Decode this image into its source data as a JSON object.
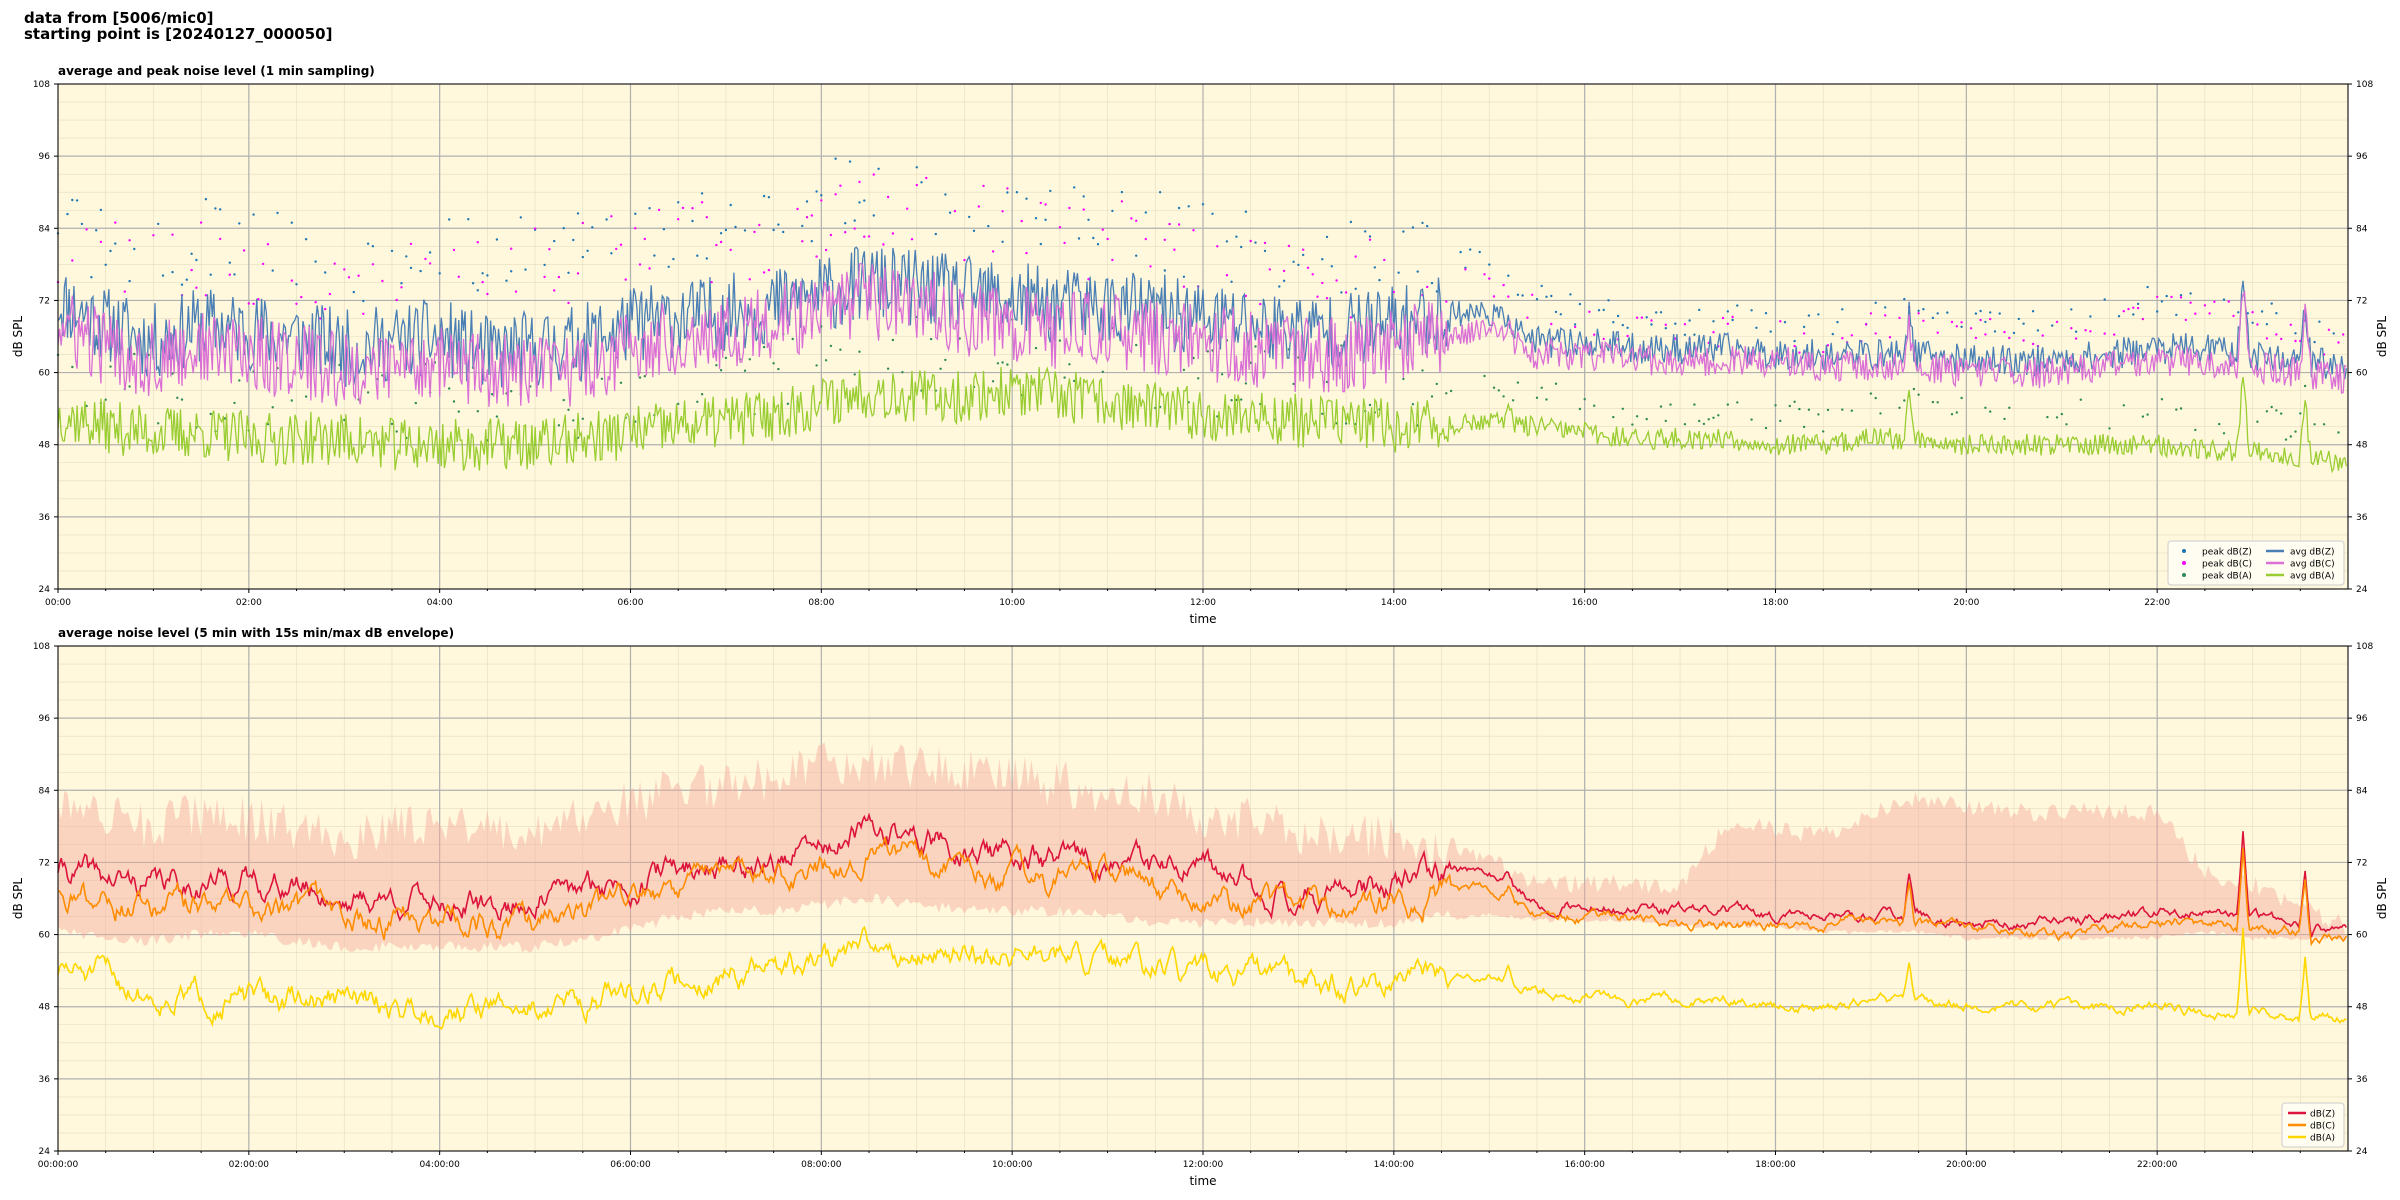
{
  "header": {
    "line1": "data from [5006/mic0]",
    "line2": "starting point is [20240127_000050]"
  },
  "colors": {
    "background": "#fff8dc",
    "peak_z": "#1f77b4",
    "peak_c": "#ff00ff",
    "peak_a": "#2e8b57",
    "avg_z": "#4a7fb5",
    "avg_c": "#da70d6",
    "avg_a": "#9acd32",
    "env": "#f4a89c",
    "z5": "#dc143c",
    "c5": "#ff8c00",
    "a5": "#ffd700"
  },
  "chart_data": [
    {
      "type": "line",
      "title": "average and peak noise level (1 min sampling)",
      "xlabel": "time",
      "ylabel": "dB SPL",
      "ylim": [
        24,
        108
      ],
      "xlim_hours": [
        0,
        24
      ],
      "x_ticks": [
        "00:00",
        "02:00",
        "04:00",
        "06:00",
        "08:00",
        "10:00",
        "12:00",
        "14:00",
        "16:00",
        "18:00",
        "20:00",
        "22:00"
      ],
      "y_ticks": [
        24,
        36,
        48,
        60,
        72,
        84,
        96,
        108
      ],
      "grid": true,
      "legend_position": "bottom-right",
      "x_hours": [
        0,
        0.5,
        1,
        1.5,
        2,
        2.5,
        3,
        3.5,
        4,
        4.5,
        5,
        5.5,
        6,
        6.5,
        7,
        7.5,
        8,
        8.5,
        9,
        9.5,
        10,
        10.5,
        11,
        11.5,
        12,
        12.5,
        13,
        13.5,
        14,
        14.5,
        15,
        15.5,
        16,
        16.5,
        17,
        17.5,
        18,
        18.5,
        19,
        19.5,
        20,
        20.5,
        21,
        21.5,
        22,
        22.5,
        23,
        23.5,
        24
      ],
      "series": [
        {
          "name": "avg dB(Z)",
          "style": "line",
          "values": [
            72,
            68,
            65,
            68,
            67,
            66,
            64,
            65,
            66,
            63,
            64,
            65,
            68,
            69,
            70,
            71,
            73,
            75,
            74,
            73,
            72,
            71,
            71,
            70,
            69,
            68,
            67,
            67,
            68,
            70,
            70,
            65,
            65,
            64,
            64,
            64,
            63,
            63,
            63,
            63,
            62,
            62,
            62,
            63,
            64,
            64,
            63,
            62,
            61
          ]
        },
        {
          "name": "avg dB(C)",
          "style": "line",
          "values": [
            68,
            64,
            62,
            64,
            63,
            62,
            60,
            61,
            62,
            60,
            60,
            61,
            64,
            66,
            67,
            68,
            70,
            72,
            71,
            69,
            68,
            67,
            67,
            66,
            65,
            64,
            63,
            63,
            65,
            66,
            67,
            63,
            63,
            62,
            62,
            62,
            62,
            61,
            61,
            61,
            60,
            60,
            60,
            61,
            62,
            62,
            61,
            60,
            59
          ]
        },
        {
          "name": "avg dB(A)",
          "style": "line",
          "values": [
            53,
            51,
            50,
            50,
            49,
            49,
            49,
            48,
            48,
            48,
            48,
            49,
            50,
            51,
            52,
            53,
            55,
            57,
            56,
            56,
            57,
            56,
            55,
            54,
            53,
            53,
            52,
            52,
            51,
            51,
            52,
            51,
            50,
            49,
            49,
            49,
            48,
            48,
            49,
            49,
            48,
            48,
            48,
            48,
            48,
            47,
            47,
            46,
            45
          ]
        },
        {
          "name": "peak dB(Z)",
          "style": "scatter",
          "values": [
            84,
            82,
            80,
            82,
            81,
            80,
            78,
            80,
            80,
            79,
            80,
            81,
            83,
            84,
            85,
            86,
            88,
            90,
            89,
            88,
            87,
            86,
            85,
            84,
            82,
            81,
            80,
            79,
            80,
            79,
            78,
            72,
            70,
            70,
            69,
            69,
            68,
            68,
            70,
            70,
            70,
            69,
            69,
            70,
            72,
            72,
            70,
            68,
            66
          ]
        },
        {
          "name": "peak dB(C)",
          "style": "scatter",
          "values": [
            81,
            79,
            77,
            79,
            78,
            77,
            75,
            77,
            77,
            76,
            77,
            78,
            80,
            81,
            82,
            83,
            85,
            87,
            86,
            85,
            84,
            83,
            82,
            81,
            79,
            78,
            77,
            76,
            77,
            76,
            75,
            70,
            68,
            68,
            67,
            67,
            66,
            66,
            68,
            68,
            68,
            67,
            67,
            68,
            70,
            70,
            68,
            66,
            64
          ]
        },
        {
          "name": "peak dB(A)",
          "style": "scatter",
          "values": [
            60,
            58,
            57,
            57,
            56,
            56,
            55,
            55,
            55,
            55,
            55,
            56,
            57,
            58,
            59,
            60,
            62,
            64,
            63,
            63,
            63,
            62,
            61,
            60,
            59,
            59,
            58,
            58,
            57,
            57,
            57,
            56,
            55,
            54,
            54,
            54,
            53,
            53,
            54,
            54,
            53,
            53,
            53,
            53,
            53,
            52,
            52,
            51,
            50
          ]
        }
      ]
    },
    {
      "type": "line",
      "title": "average noise level (5 min with 15s min/max dB envelope)",
      "xlabel": "time",
      "ylabel": "dB SPL",
      "ylim": [
        24,
        108
      ],
      "xlim_hours": [
        0,
        24
      ],
      "x_ticks": [
        "00:00:00",
        "02:00:00",
        "04:00:00",
        "06:00:00",
        "08:00:00",
        "10:00:00",
        "12:00:00",
        "14:00:00",
        "16:00:00",
        "18:00:00",
        "20:00:00",
        "22:00:00"
      ],
      "y_ticks": [
        24,
        36,
        48,
        60,
        72,
        84,
        96,
        108
      ],
      "grid": true,
      "legend_position": "bottom-right",
      "x_hours": [
        0,
        0.5,
        1,
        1.5,
        2,
        2.5,
        3,
        3.5,
        4,
        4.5,
        5,
        5.5,
        6,
        6.5,
        7,
        7.5,
        8,
        8.5,
        9,
        9.5,
        10,
        10.5,
        11,
        11.5,
        12,
        12.5,
        13,
        13.5,
        14,
        14.5,
        15,
        15.5,
        16,
        16.5,
        17,
        17.5,
        18,
        18.5,
        19,
        19.5,
        20,
        20.5,
        21,
        21.5,
        22,
        22.5,
        23,
        23.5,
        24
      ],
      "envelope": {
        "min": [
          60,
          58,
          58,
          59,
          59,
          58,
          57,
          57,
          57,
          57,
          57,
          58,
          60,
          62,
          63,
          63,
          64,
          65,
          64,
          63,
          63,
          63,
          62,
          61,
          61,
          61,
          61,
          61,
          61,
          62,
          63,
          62,
          62,
          62,
          61,
          61,
          61,
          60,
          60,
          60,
          59,
          59,
          59,
          59,
          59,
          60,
          59,
          59,
          59
        ],
        "max": [
          86,
          84,
          82,
          84,
          83,
          82,
          80,
          82,
          82,
          81,
          82,
          83,
          86,
          88,
          89,
          90,
          92,
          93,
          92,
          91,
          90,
          89,
          88,
          87,
          84,
          83,
          81,
          80,
          80,
          77,
          74,
          70,
          70,
          70,
          70,
          80,
          79,
          78,
          82,
          84,
          83,
          82,
          82,
          82,
          82,
          72,
          70,
          66,
          63
        ]
      },
      "series": [
        {
          "name": "dB(Z)",
          "values": [
            71,
            69,
            68,
            69,
            69,
            68,
            66,
            66,
            66,
            64,
            66,
            67,
            69,
            71,
            72,
            72,
            74,
            77,
            76,
            74,
            73,
            72,
            72,
            71,
            70,
            68,
            67,
            67,
            68,
            70,
            71,
            65,
            65,
            64,
            64,
            64,
            63,
            63,
            63,
            63,
            62,
            62,
            62,
            63,
            64,
            64,
            63,
            61,
            61
          ]
        },
        {
          "name": "dB(C)",
          "values": [
            68,
            66,
            64,
            65,
            65,
            64,
            62,
            62,
            62,
            61,
            62,
            63,
            66,
            68,
            69,
            70,
            71,
            74,
            73,
            71,
            70,
            69,
            69,
            68,
            67,
            65,
            64,
            64,
            65,
            67,
            68,
            63,
            63,
            63,
            62,
            62,
            62,
            62,
            62,
            62,
            61,
            60,
            60,
            61,
            62,
            62,
            61,
            60,
            60
          ]
        },
        {
          "name": "dB(A)",
          "values": [
            54,
            53,
            50,
            50,
            49,
            49,
            49,
            48,
            48,
            48,
            48,
            49,
            51,
            52,
            53,
            54,
            56,
            58,
            57,
            57,
            57,
            56,
            55,
            54,
            53,
            53,
            52,
            52,
            51,
            52,
            53,
            51,
            50,
            49,
            49,
            49,
            48,
            48,
            49,
            49,
            48,
            48,
            48,
            48,
            48,
            47,
            47,
            46,
            46
          ]
        }
      ]
    }
  ]
}
